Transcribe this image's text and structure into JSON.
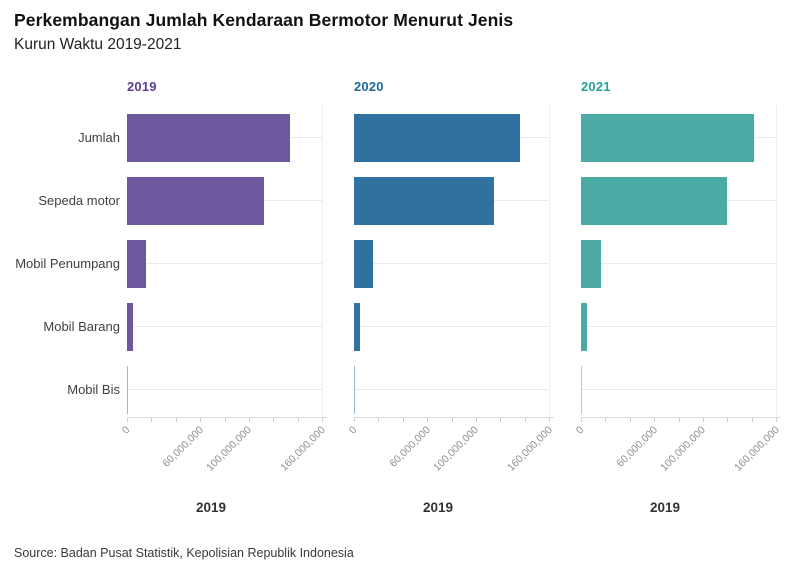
{
  "title": "Perkembangan Jumlah Kendaraan Bermotor Menurut Jenis",
  "subtitle": "Kurun Waktu 2019-2021",
  "source": "Source: Badan Pusat Statistik, Kepolisian Republik Indonesia",
  "categories": [
    "Jumlah",
    "Sepeda motor",
    "Mobil Penumpang",
    "Mobil Barang",
    "Mobil Bis"
  ],
  "x_axis": {
    "tick_values": [
      0,
      60000000,
      100000000,
      160000000
    ],
    "tick_labels": [
      "0",
      "60,000,000",
      "100,000,000",
      "160,000,000"
    ],
    "minor_tick_count": 9,
    "max": 160000000,
    "caption": "2019"
  },
  "panels": [
    {
      "year": "2019",
      "bar_color": "#6c589d",
      "header_color": "#5a3e91",
      "values": [
        133617012,
        112771136,
        15592419,
        5021888,
        231569
      ]
    },
    {
      "year": "2020",
      "bar_color": "#2f729f",
      "header_color": "#1e6a9b",
      "values": [
        136137451,
        115023039,
        15797746,
        5083405,
        233261
      ]
    },
    {
      "year": "2021",
      "bar_color": "#49aba3",
      "header_color": "#2ba099",
      "values": [
        141992117,
        120042298,
        16413348,
        5298905,
        237566
      ]
    }
  ],
  "chart_data": {
    "type": "bar",
    "orientation": "horizontal",
    "title": "Perkembangan Jumlah Kendaraan Bermotor Menurut Jenis",
    "subtitle": "Kurun Waktu 2019-2021",
    "source": "Source: Badan Pusat Statistik, Kepolisian Republik Indonesia",
    "categories": [
      "Jumlah",
      "Sepeda motor",
      "Mobil Penumpang",
      "Mobil Barang",
      "Mobil Bis"
    ],
    "series": [
      {
        "name": "2019",
        "color": "#6c589d",
        "values": [
          133617012,
          112771136,
          15592419,
          5021888,
          231569
        ]
      },
      {
        "name": "2020",
        "color": "#2f729f",
        "values": [
          136137451,
          115023039,
          15797746,
          5083405,
          233261
        ]
      },
      {
        "name": "2021",
        "color": "#49aba3",
        "values": [
          141992117,
          120042298,
          16413348,
          5298905,
          237566
        ]
      }
    ],
    "facets": [
      "2019",
      "2020",
      "2021"
    ],
    "xlim": [
      0,
      160000000
    ],
    "x_tick_labels": [
      "0",
      "60,000,000",
      "100,000,000",
      "160,000,000"
    ],
    "x_axis_caption_per_facet": "2019",
    "grid": "horizontal-per-category",
    "legend": "none"
  }
}
